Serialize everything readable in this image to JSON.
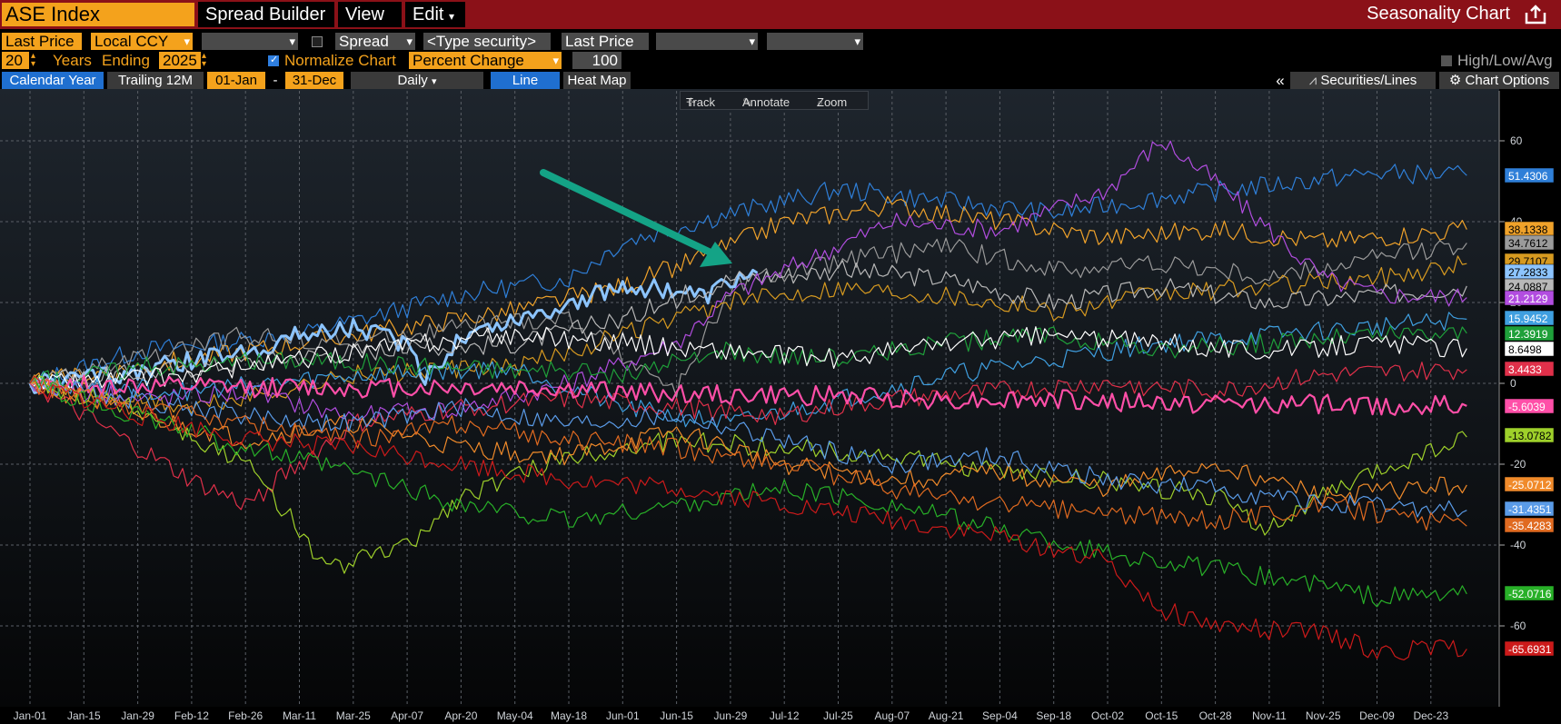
{
  "header": {
    "security": "ASE Index",
    "menus": [
      "Spread Builder",
      "View",
      "Edit"
    ],
    "title": "Seasonality Chart"
  },
  "row2": {
    "field1": "Last Price",
    "currency": "Local CCY",
    "spread_label": "Spread",
    "type_security": "<Type security>",
    "field2": "Last Price"
  },
  "row3": {
    "years": "20",
    "years_label": "Years",
    "ending_label": "Ending",
    "end_year": "2025",
    "normalize_label": "Normalize Chart",
    "mode": "Percent Change",
    "base": "100",
    "hla_label": "High/Low/Avg"
  },
  "row4": {
    "calendar_year": "Calendar Year",
    "trailing": "Trailing 12M",
    "start": "01-Jan",
    "dash": "-",
    "end": "31-Dec",
    "freq": "Daily",
    "line": "Line",
    "heatmap": "Heat Map",
    "collapse": "«",
    "securities": "Securities/Lines",
    "options": "Chart Options"
  },
  "toolbar": {
    "track": "Track",
    "annotate": "Annotate",
    "zoom": "Zoom"
  },
  "colors": {
    "accent": "#f4a21c",
    "header": "#8b1118",
    "arrow": "#14a386"
  },
  "chart_data": {
    "type": "line",
    "xlabels": [
      "Jan-01",
      "Jan-15",
      "Jan-29",
      "Feb-12",
      "Feb-26",
      "Mar-11",
      "Mar-25",
      "Apr-07",
      "Apr-20",
      "May-04",
      "May-18",
      "Jun-01",
      "Jun-15",
      "Jun-29",
      "Jul-12",
      "Jul-25",
      "Aug-07",
      "Aug-21",
      "Sep-04",
      "Sep-18",
      "Oct-02",
      "Oct-15",
      "Oct-28",
      "Nov-11",
      "Nov-25",
      "Dec-09",
      "Dec-23"
    ],
    "ylim": [
      -80,
      75
    ],
    "yticks": [
      60,
      40,
      20,
      0,
      -20,
      -40,
      -60
    ],
    "grid": true,
    "series": [
      {
        "color": "#2f7fd8",
        "final": 51.4306,
        "label": "51.4306",
        "anchors": [
          [
            0,
            0
          ],
          [
            2,
            8
          ],
          [
            5,
            12
          ],
          [
            8,
            22
          ],
          [
            10,
            26
          ],
          [
            11,
            35
          ],
          [
            13,
            42
          ],
          [
            15,
            48
          ],
          [
            17,
            45
          ],
          [
            19,
            42
          ],
          [
            21,
            46
          ],
          [
            23,
            49
          ],
          [
            25,
            52
          ],
          [
            26.7,
            51.4
          ]
        ]
      },
      {
        "color": "#f0a22a",
        "final": 38.1338,
        "label": "38.1338",
        "anchors": [
          [
            0,
            0
          ],
          [
            3,
            6
          ],
          [
            6,
            12
          ],
          [
            9,
            18
          ],
          [
            11,
            24
          ],
          [
            13,
            34
          ],
          [
            14,
            40
          ],
          [
            16,
            44
          ],
          [
            18,
            40
          ],
          [
            20,
            36
          ],
          [
            22,
            38
          ],
          [
            24,
            35
          ],
          [
            26.7,
            38.1
          ]
        ]
      },
      {
        "color": "#9a9a9a",
        "final": 34.7612,
        "label": "34.7612",
        "anchors": [
          [
            0,
            0
          ],
          [
            2,
            6
          ],
          [
            4,
            12
          ],
          [
            6,
            10
          ],
          [
            8,
            14
          ],
          [
            10,
            16
          ],
          [
            12,
            -2
          ],
          [
            13,
            24
          ],
          [
            15,
            30
          ],
          [
            17,
            34
          ],
          [
            19,
            28
          ],
          [
            21,
            30
          ],
          [
            23,
            26
          ],
          [
            25,
            31
          ],
          [
            26.7,
            34.8
          ]
        ]
      },
      {
        "color": "#d79a20",
        "final": 29.7107,
        "label": "29.7107",
        "anchors": [
          [
            0,
            0
          ],
          [
            3,
            -6
          ],
          [
            6,
            2
          ],
          [
            9,
            4
          ],
          [
            11,
            12
          ],
          [
            13,
            20
          ],
          [
            15,
            24
          ],
          [
            17,
            22
          ],
          [
            19,
            18
          ],
          [
            21,
            22
          ],
          [
            23,
            24
          ],
          [
            25,
            26
          ],
          [
            26.7,
            29.7
          ]
        ]
      },
      {
        "color": "#8cc4ff",
        "final": 27.2833,
        "label": "27.2833",
        "anchors": [
          [
            0,
            0
          ],
          [
            2,
            3
          ],
          [
            4,
            8
          ],
          [
            5,
            12
          ],
          [
            6,
            14
          ],
          [
            7,
            10
          ],
          [
            7.3,
            0
          ],
          [
            8,
            12
          ],
          [
            9,
            16
          ],
          [
            10,
            20
          ],
          [
            11,
            24
          ],
          [
            12,
            23
          ],
          [
            12.5,
            21
          ],
          [
            13,
            25
          ],
          [
            13.5,
            27.3
          ]
        ]
      },
      {
        "color": "#b8b8b8",
        "final": 24.0887,
        "label": "24.0887",
        "anchors": [
          [
            0,
            0
          ],
          [
            3,
            4
          ],
          [
            6,
            8
          ],
          [
            9,
            10
          ],
          [
            11,
            16
          ],
          [
            13,
            26
          ],
          [
            15,
            28
          ],
          [
            17,
            26
          ],
          [
            19,
            20
          ],
          [
            21,
            24
          ],
          [
            23,
            20
          ],
          [
            25,
            22
          ],
          [
            26.7,
            24.1
          ]
        ]
      },
      {
        "color": "#b24de0",
        "final": 21.2129,
        "label": "21.2129",
        "anchors": [
          [
            0,
            0
          ],
          [
            2,
            -4
          ],
          [
            4,
            -2
          ],
          [
            6,
            -8
          ],
          [
            8,
            -6
          ],
          [
            10,
            0
          ],
          [
            12,
            10
          ],
          [
            13,
            22
          ],
          [
            15,
            34
          ],
          [
            16,
            40
          ],
          [
            18,
            38
          ],
          [
            20,
            48
          ],
          [
            21,
            60
          ],
          [
            22,
            50
          ],
          [
            23,
            38
          ],
          [
            24,
            26
          ],
          [
            25,
            22
          ],
          [
            26.7,
            21.2
          ]
        ]
      },
      {
        "color": "#3f9fe0",
        "final": 15.9452,
        "label": "15.9452",
        "anchors": [
          [
            0,
            0
          ],
          [
            3,
            -2
          ],
          [
            6,
            2
          ],
          [
            9,
            4
          ],
          [
            11,
            -6
          ],
          [
            13,
            -10
          ],
          [
            15,
            -4
          ],
          [
            17,
            2
          ],
          [
            19,
            6
          ],
          [
            21,
            10
          ],
          [
            23,
            12
          ],
          [
            25,
            14
          ],
          [
            26.7,
            15.9
          ]
        ]
      },
      {
        "color": "#1fa03a",
        "final": 12.3919,
        "label": "12.3919",
        "anchors": [
          [
            0,
            0
          ],
          [
            2,
            4
          ],
          [
            5,
            6
          ],
          [
            8,
            4
          ],
          [
            11,
            2
          ],
          [
            13,
            8
          ],
          [
            15,
            6
          ],
          [
            17,
            10
          ],
          [
            19,
            12
          ],
          [
            21,
            8
          ],
          [
            23,
            10
          ],
          [
            25,
            12
          ],
          [
            26.7,
            12.4
          ]
        ]
      },
      {
        "color": "#ffffff",
        "final": 8.6498,
        "label": "8.6498",
        "anchors": [
          [
            0,
            0
          ],
          [
            3,
            2
          ],
          [
            6,
            8
          ],
          [
            9,
            12
          ],
          [
            11,
            10
          ],
          [
            13,
            8
          ],
          [
            15,
            6
          ],
          [
            17,
            10
          ],
          [
            19,
            12
          ],
          [
            21,
            10
          ],
          [
            23,
            8
          ],
          [
            25,
            10
          ],
          [
            26.7,
            8.6
          ]
        ]
      },
      {
        "color": "#e0304a",
        "final": 3.4433,
        "label": "3.4433",
        "anchors": [
          [
            0,
            0
          ],
          [
            2,
            -16
          ],
          [
            3,
            -24
          ],
          [
            4,
            -30
          ],
          [
            6,
            -10
          ],
          [
            8,
            -6
          ],
          [
            10,
            -4
          ],
          [
            12,
            -6
          ],
          [
            14,
            -8
          ],
          [
            16,
            -4
          ],
          [
            18,
            -2
          ],
          [
            20,
            0
          ],
          [
            22,
            -2
          ],
          [
            24,
            2
          ],
          [
            26.7,
            3.4
          ]
        ]
      },
      {
        "color": "#ff4fa8",
        "final": -5.6039,
        "label": "-5.6039",
        "anchors": [
          [
            0,
            0
          ],
          [
            3,
            -1
          ],
          [
            6,
            -1
          ],
          [
            9,
            -1
          ],
          [
            11,
            -2
          ],
          [
            13,
            -3
          ],
          [
            15,
            -3
          ],
          [
            17,
            -4
          ],
          [
            19,
            -4
          ],
          [
            21,
            -5
          ],
          [
            23,
            -5
          ],
          [
            25,
            -5.5
          ],
          [
            26.7,
            -5.6
          ]
        ]
      },
      {
        "color": "#9ed02a",
        "final": -13.0782,
        "label": "-13.0782",
        "anchors": [
          [
            0,
            0
          ],
          [
            2,
            -6
          ],
          [
            4,
            -20
          ],
          [
            5,
            -36
          ],
          [
            5.5,
            -46
          ],
          [
            6,
            -44
          ],
          [
            7,
            -40
          ],
          [
            8,
            -28
          ],
          [
            10,
            -18
          ],
          [
            12,
            -14
          ],
          [
            14,
            -16
          ],
          [
            16,
            -18
          ],
          [
            18,
            -22
          ],
          [
            20,
            -24
          ],
          [
            22,
            -28
          ],
          [
            23,
            -36
          ],
          [
            24,
            -28
          ],
          [
            25,
            -22
          ],
          [
            26.7,
            -13.1
          ]
        ]
      },
      {
        "color": "#f08a2a",
        "final": -25.0712,
        "label": "-25.0712",
        "anchors": [
          [
            0,
            0
          ],
          [
            2,
            -8
          ],
          [
            4,
            -14
          ],
          [
            6,
            -10
          ],
          [
            8,
            -16
          ],
          [
            10,
            -18
          ],
          [
            12,
            -12
          ],
          [
            14,
            -20
          ],
          [
            16,
            -24
          ],
          [
            18,
            -22
          ],
          [
            20,
            -26
          ],
          [
            22,
            -20
          ],
          [
            24,
            -28
          ],
          [
            26.7,
            -25.1
          ]
        ]
      },
      {
        "color": "#5a9be8",
        "final": -31.4351,
        "label": "-31.4351",
        "anchors": [
          [
            0,
            0
          ],
          [
            2,
            -4
          ],
          [
            4,
            -8
          ],
          [
            6,
            -10
          ],
          [
            8,
            -6
          ],
          [
            10,
            -10
          ],
          [
            12,
            -8
          ],
          [
            14,
            -14
          ],
          [
            16,
            -20
          ],
          [
            18,
            -18
          ],
          [
            20,
            -24
          ],
          [
            22,
            -26
          ],
          [
            24,
            -30
          ],
          [
            26.7,
            -31.4
          ]
        ]
      },
      {
        "color": "#e06a20",
        "final": -35.4283,
        "label": "-35.4283",
        "anchors": [
          [
            0,
            0
          ],
          [
            2,
            -6
          ],
          [
            4,
            -10
          ],
          [
            6,
            -14
          ],
          [
            8,
            -10
          ],
          [
            10,
            -14
          ],
          [
            12,
            -16
          ],
          [
            14,
            -20
          ],
          [
            16,
            -26
          ],
          [
            18,
            -30
          ],
          [
            20,
            -32
          ],
          [
            22,
            -34
          ],
          [
            24,
            -30
          ],
          [
            26.7,
            -35.4
          ]
        ]
      },
      {
        "color": "#28b028",
        "final": -52.0716,
        "label": "-52.0716",
        "anchors": [
          [
            0,
            0
          ],
          [
            2,
            -8
          ],
          [
            4,
            -16
          ],
          [
            6,
            -22
          ],
          [
            8,
            -30
          ],
          [
            10,
            -34
          ],
          [
            12,
            -30
          ],
          [
            14,
            -26
          ],
          [
            16,
            -30
          ],
          [
            18,
            -36
          ],
          [
            20,
            -42
          ],
          [
            22,
            -46
          ],
          [
            24,
            -50
          ],
          [
            25,
            -53
          ],
          [
            26.7,
            -52.1
          ]
        ]
      },
      {
        "color": "#cc1a1a",
        "final": -65.6931,
        "label": "-65.6931",
        "anchors": [
          [
            0,
            0
          ],
          [
            2,
            -8
          ],
          [
            4,
            -14
          ],
          [
            6,
            -16
          ],
          [
            8,
            -20
          ],
          [
            10,
            -24
          ],
          [
            12,
            -26
          ],
          [
            14,
            -30
          ],
          [
            16,
            -34
          ],
          [
            18,
            -38
          ],
          [
            20,
            -44
          ],
          [
            21,
            -56
          ],
          [
            22,
            -60
          ],
          [
            24,
            -62
          ],
          [
            25,
            -66
          ],
          [
            26.7,
            -65.7
          ]
        ]
      }
    ],
    "labels_order": [
      "51.4306",
      "38.1338",
      "34.7612",
      "29.7107",
      "27.2833",
      "24.0887",
      "21.2129",
      "15.9452",
      "12.3919",
      "8.6498",
      "3.4433",
      "-5.6039",
      "-13.0782",
      "-25.0712",
      "-31.4351",
      "-35.4283",
      "-52.0716",
      "-65.6931"
    ]
  }
}
